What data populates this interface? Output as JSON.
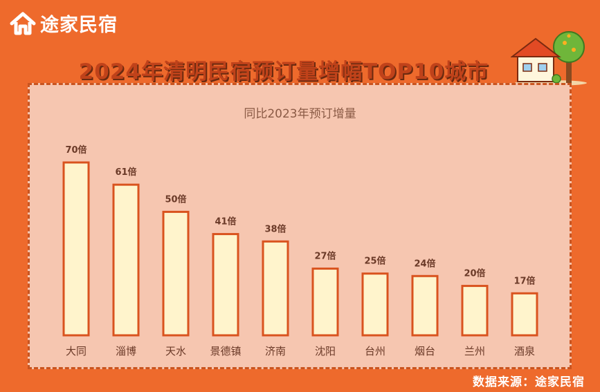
{
  "brand": {
    "logo_text": "途家民宿"
  },
  "title": "2024年清明民宿预订量增幅TOP10城市",
  "source_text": "数据来源：途家民宿",
  "colors": {
    "background": "#ee6a2c",
    "panel": "#f6c6b0",
    "bar_fill": "#fff4cc",
    "bar_stroke": "#d9531e",
    "title": "#c0421a"
  },
  "chart_data": {
    "type": "bar",
    "title": "同比2023年预订增量",
    "categories": [
      "大同",
      "淄博",
      "天水",
      "景德镇",
      "济南",
      "沈阳",
      "台州",
      "烟台",
      "兰州",
      "酒泉"
    ],
    "values": [
      70,
      61,
      50,
      41,
      38,
      27,
      25,
      24,
      20,
      17
    ],
    "value_labels": [
      "70倍",
      "61倍",
      "50倍",
      "41倍",
      "38倍",
      "27倍",
      "25倍",
      "24倍",
      "20倍",
      "17倍"
    ],
    "xlabel": "",
    "ylabel": "",
    "ylim": [
      0,
      70
    ],
    "grid": false,
    "legend": "none"
  }
}
